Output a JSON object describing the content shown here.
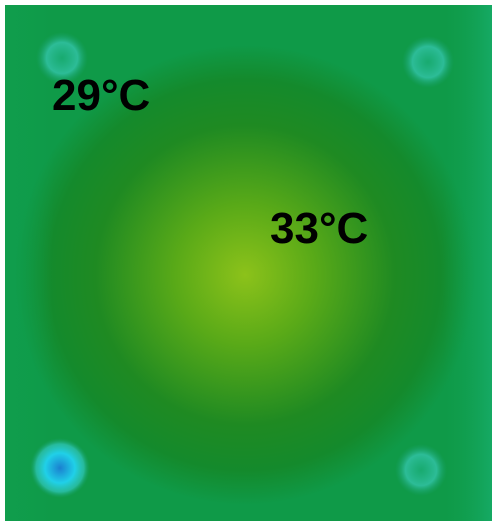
{
  "labels": [
    {
      "text": "29°C"
    },
    {
      "text": "33°C"
    }
  ]
}
